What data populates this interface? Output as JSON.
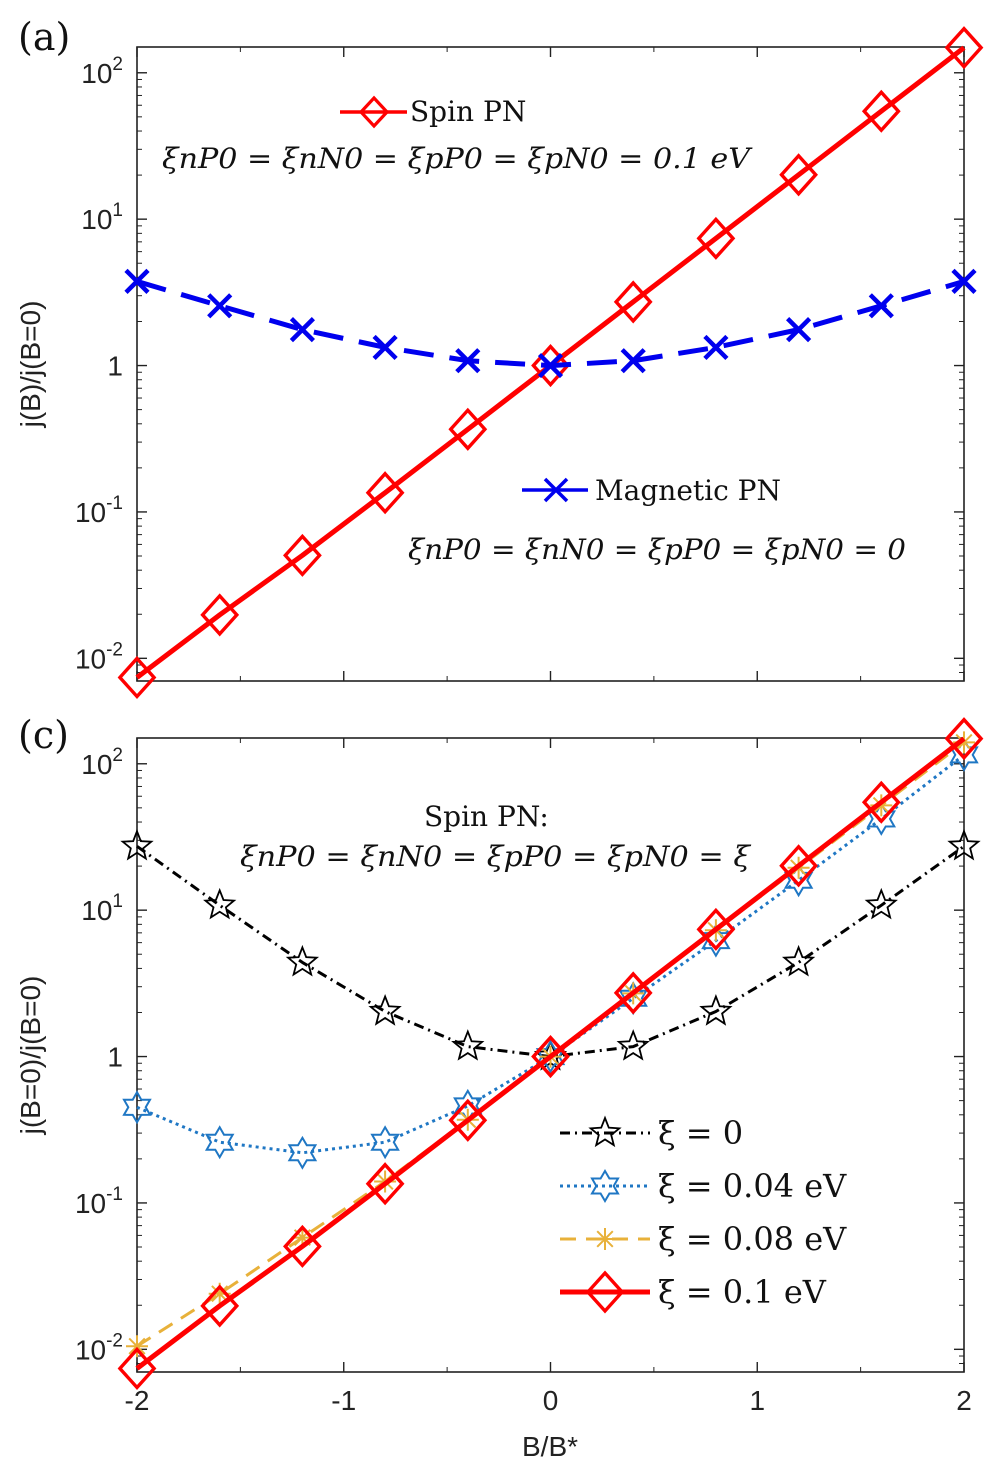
{
  "chart_data": [
    {
      "panel": "(a)",
      "type": "line",
      "yscale": "log",
      "xlim": [
        -2,
        2
      ],
      "ylim": [
        0.007,
        150
      ],
      "ylabel": "j(B)/j(B=0)",
      "xlabel": "",
      "y_ticks": [
        {
          "value": 0.01,
          "base": "10",
          "exp": "-2"
        },
        {
          "value": 0.1,
          "base": "10",
          "exp": "-1"
        },
        {
          "value": 1,
          "base": "1",
          "exp": ""
        },
        {
          "value": 10,
          "base": "10",
          "exp": "1"
        },
        {
          "value": 100,
          "base": "10",
          "exp": "2"
        }
      ],
      "x": [
        -2,
        -1.6,
        -1.2,
        -0.8,
        -0.4,
        0,
        0.4,
        0.8,
        1.2,
        1.6,
        2
      ],
      "series": [
        {
          "name": "Spin PN",
          "color": "#ff0000",
          "marker": "diamond",
          "dash": "",
          "values": [
            0.0074,
            0.0198,
            0.0505,
            0.1353,
            0.367,
            1,
            2.72,
            7.39,
            20.1,
            54.6,
            148.4
          ]
        },
        {
          "name": "Magnetic PN",
          "color": "#0000ee",
          "marker": "x",
          "dash": "30 16",
          "values": [
            3.76,
            2.56,
            1.76,
            1.33,
            1.08,
            1,
            1.08,
            1.33,
            1.76,
            2.56,
            3.76
          ]
        }
      ],
      "annotations": {
        "spin_label": "Spin PN",
        "spin_eq": "ξnP0 = ξnN0 = ξpP0 = ξpN0 = 0.1 eV",
        "magnetic_label": "Magnetic  PN",
        "magnetic_eq": "ξnP0 = ξnN0 = ξpP0 = ξpN0 = 0"
      }
    },
    {
      "panel": "(c)",
      "type": "line",
      "yscale": "log",
      "xlim": [
        -2,
        2
      ],
      "ylim": [
        0.007,
        150
      ],
      "ylabel": "j(B=0)/j(B=0)",
      "xlabel": "B/B*",
      "x_ticks": [
        "-2",
        "-1",
        "0",
        "1",
        "2"
      ],
      "y_ticks": [
        {
          "value": 0.01,
          "base": "10",
          "exp": "-2"
        },
        {
          "value": 0.1,
          "base": "10",
          "exp": "-1"
        },
        {
          "value": 1,
          "base": "1",
          "exp": ""
        },
        {
          "value": 10,
          "base": "10",
          "exp": "1"
        },
        {
          "value": 100,
          "base": "10",
          "exp": "2"
        }
      ],
      "x": [
        -2,
        -1.6,
        -1.2,
        -0.8,
        -0.4,
        0,
        0.4,
        0.8,
        1.2,
        1.6,
        2
      ],
      "series": [
        {
          "name": "ξ = 0",
          "color": "#000000",
          "marker": "star",
          "dash": "10 5 2 5",
          "values": [
            27.3,
            10.8,
            4.4,
            2.03,
            1.17,
            1,
            1.17,
            2.03,
            4.4,
            10.8,
            27.3
          ]
        },
        {
          "name": "ξ = 0.04 eV",
          "color": "#1f77c4",
          "marker": "hexagram",
          "dash": "3 4",
          "values": [
            0.45,
            0.26,
            0.22,
            0.26,
            0.46,
            1,
            2.5,
            6.2,
            16,
            42,
            115
          ]
        },
        {
          "name": "ξ = 0.08 eV",
          "color": "#e8b13a",
          "marker": "asterisk",
          "dash": "16 10",
          "values": [
            0.0105,
            0.024,
            0.058,
            0.14,
            0.37,
            1,
            2.7,
            7.3,
            19.5,
            52,
            140
          ]
        },
        {
          "name": "ξ = 0.1 eV",
          "color": "#ff0000",
          "marker": "diamond",
          "dash": "",
          "values": [
            0.0074,
            0.0198,
            0.0505,
            0.1353,
            0.367,
            1,
            2.72,
            7.39,
            20.1,
            54.6,
            148.4
          ]
        }
      ],
      "annotations": {
        "spin_label": "Spin PN:",
        "spin_eq": "ξnP0 = ξnN0 = ξpP0 = ξpN0 = ξ"
      }
    }
  ]
}
